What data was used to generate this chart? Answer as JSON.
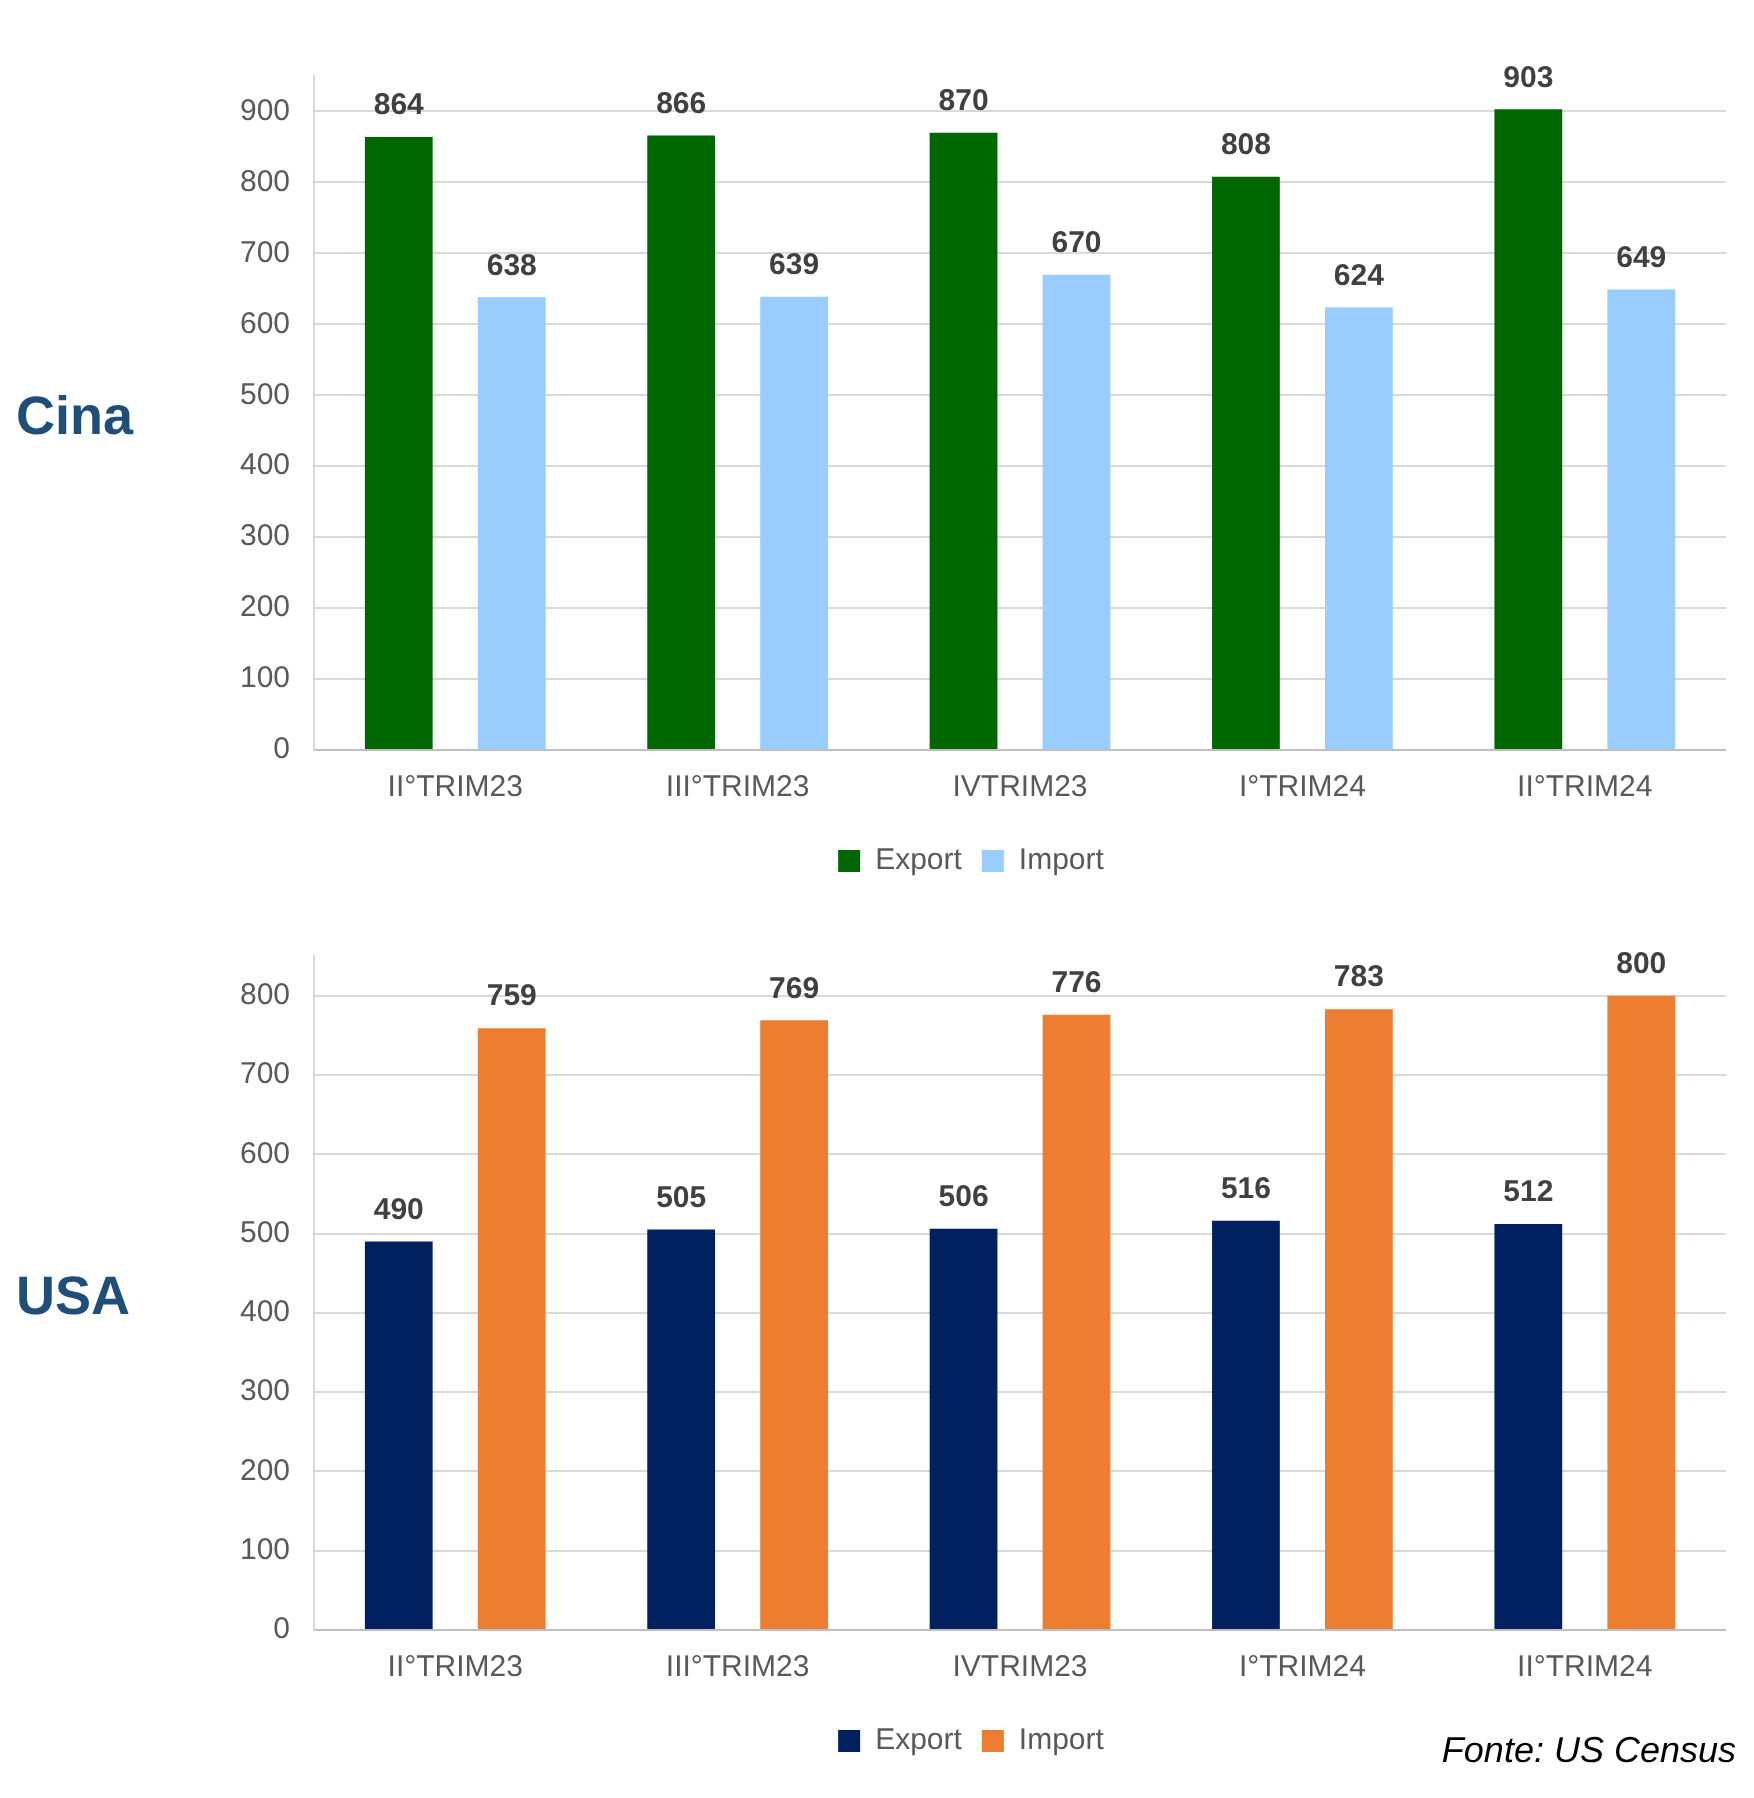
{
  "chart_data": [
    {
      "type": "bar",
      "title": "Cina",
      "categories": [
        "II°TRIM23",
        "III°TRIM23",
        "IVTRIM23",
        "I°TRIM24",
        "II°TRIM24"
      ],
      "series": [
        {
          "name": "Export",
          "color": "#006600",
          "values": [
            864,
            866,
            870,
            808,
            903
          ]
        },
        {
          "name": "Import",
          "color": "#99ccff",
          "values": [
            638,
            639,
            670,
            624,
            649
          ]
        }
      ],
      "ylim": [
        0,
        950
      ],
      "yticks": [
        0,
        100,
        200,
        300,
        400,
        500,
        600,
        700,
        800,
        900
      ],
      "grid": "y",
      "legend": "bottom",
      "data_labels": true
    },
    {
      "type": "bar",
      "title": "USA",
      "categories": [
        "II°TRIM23",
        "III°TRIM23",
        "IVTRIM23",
        "I°TRIM24",
        "II°TRIM24"
      ],
      "series": [
        {
          "name": "Export",
          "color": "#002060",
          "values": [
            490,
            505,
            506,
            516,
            512
          ]
        },
        {
          "name": "Import",
          "color": "#ed7d31",
          "values": [
            759,
            769,
            776,
            783,
            800
          ]
        }
      ],
      "ylim": [
        0,
        850
      ],
      "yticks": [
        0,
        100,
        200,
        300,
        400,
        500,
        600,
        700,
        800
      ],
      "grid": "y",
      "legend": "bottom",
      "data_labels": true,
      "annotations": [
        "Fonte: US Census"
      ]
    }
  ]
}
